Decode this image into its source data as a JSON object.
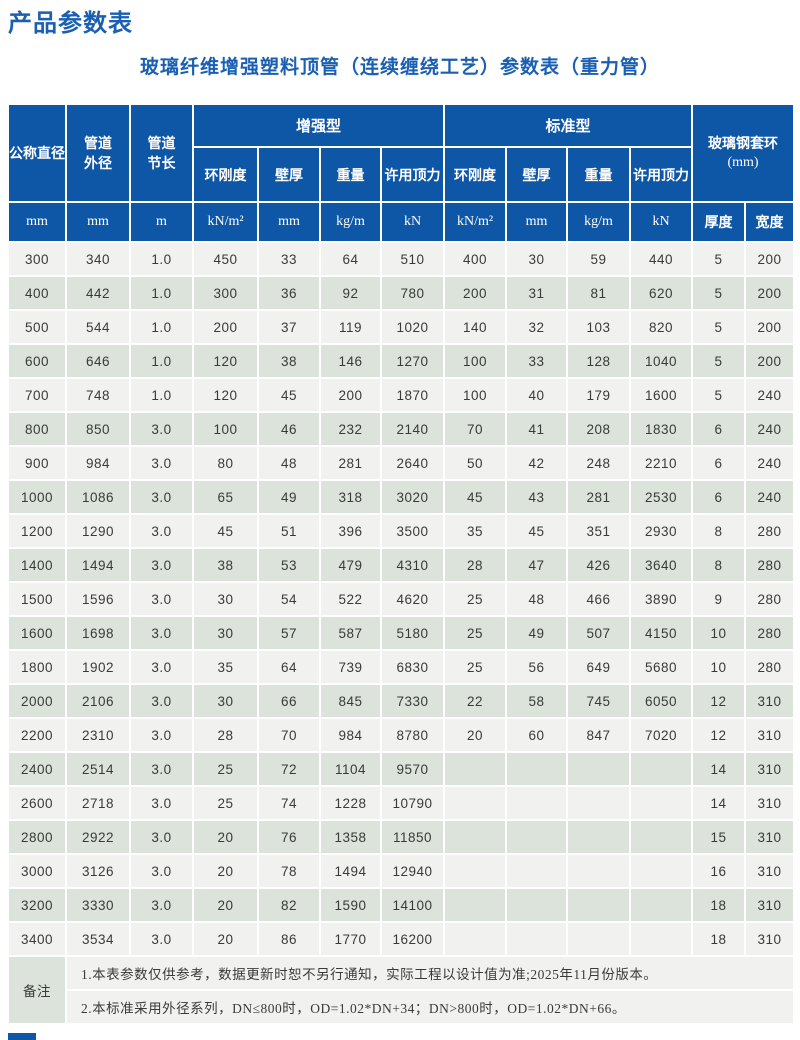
{
  "page_title": "产品参数表",
  "table_title": "玻璃纤维增强塑料顶管（连续缠绕工艺）参数表（重力管）",
  "table": {
    "header": {
      "col_nominal_diameter": "公称直径",
      "col_outer_diameter": [
        "管道",
        "外径"
      ],
      "col_section_length": [
        "管道",
        "节长"
      ],
      "group_reinforced": "增强型",
      "group_standard": "标准型",
      "group_frp_collar": [
        "玻璃钢套环",
        "(mm)"
      ],
      "sub_columns": [
        "环刚度",
        "壁厚",
        "重量",
        "许用顶力"
      ],
      "units": [
        "mm",
        "mm",
        "m",
        "kN/m²",
        "mm",
        "kg/m",
        "kN",
        "kN/m²",
        "mm",
        "kg/m",
        "kN",
        "厚度",
        "宽度"
      ]
    },
    "rows": [
      [
        "300",
        "340",
        "1.0",
        "450",
        "33",
        "64",
        "510",
        "400",
        "30",
        "59",
        "440",
        "5",
        "200"
      ],
      [
        "400",
        "442",
        "1.0",
        "300",
        "36",
        "92",
        "780",
        "200",
        "31",
        "81",
        "620",
        "5",
        "200"
      ],
      [
        "500",
        "544",
        "1.0",
        "200",
        "37",
        "119",
        "1020",
        "140",
        "32",
        "103",
        "820",
        "5",
        "200"
      ],
      [
        "600",
        "646",
        "1.0",
        "120",
        "38",
        "146",
        "1270",
        "100",
        "33",
        "128",
        "1040",
        "5",
        "200"
      ],
      [
        "700",
        "748",
        "1.0",
        "120",
        "45",
        "200",
        "1870",
        "100",
        "40",
        "179",
        "1600",
        "5",
        "240"
      ],
      [
        "800",
        "850",
        "3.0",
        "100",
        "46",
        "232",
        "2140",
        "70",
        "41",
        "208",
        "1830",
        "6",
        "240"
      ],
      [
        "900",
        "984",
        "3.0",
        "80",
        "48",
        "281",
        "2640",
        "50",
        "42",
        "248",
        "2210",
        "6",
        "240"
      ],
      [
        "1000",
        "1086",
        "3.0",
        "65",
        "49",
        "318",
        "3020",
        "45",
        "43",
        "281",
        "2530",
        "6",
        "240"
      ],
      [
        "1200",
        "1290",
        "3.0",
        "45",
        "51",
        "396",
        "3500",
        "35",
        "45",
        "351",
        "2930",
        "8",
        "280"
      ],
      [
        "1400",
        "1494",
        "3.0",
        "38",
        "53",
        "479",
        "4310",
        "28",
        "47",
        "426",
        "3640",
        "8",
        "280"
      ],
      [
        "1500",
        "1596",
        "3.0",
        "30",
        "54",
        "522",
        "4620",
        "25",
        "48",
        "466",
        "3890",
        "9",
        "280"
      ],
      [
        "1600",
        "1698",
        "3.0",
        "30",
        "57",
        "587",
        "5180",
        "25",
        "49",
        "507",
        "4150",
        "10",
        "280"
      ],
      [
        "1800",
        "1902",
        "3.0",
        "35",
        "64",
        "739",
        "6830",
        "25",
        "56",
        "649",
        "5680",
        "10",
        "280"
      ],
      [
        "2000",
        "2106",
        "3.0",
        "30",
        "66",
        "845",
        "7330",
        "22",
        "58",
        "745",
        "6050",
        "12",
        "310"
      ],
      [
        "2200",
        "2310",
        "3.0",
        "28",
        "70",
        "984",
        "8780",
        "20",
        "60",
        "847",
        "7020",
        "12",
        "310"
      ],
      [
        "2400",
        "2514",
        "3.0",
        "25",
        "72",
        "1104",
        "9570",
        "",
        "",
        "",
        "",
        "14",
        "310"
      ],
      [
        "2600",
        "2718",
        "3.0",
        "25",
        "74",
        "1228",
        "10790",
        "",
        "",
        "",
        "",
        "14",
        "310"
      ],
      [
        "2800",
        "2922",
        "3.0",
        "20",
        "76",
        "1358",
        "11850",
        "",
        "",
        "",
        "",
        "15",
        "310"
      ],
      [
        "3000",
        "3126",
        "3.0",
        "20",
        "78",
        "1494",
        "12940",
        "",
        "",
        "",
        "",
        "16",
        "310"
      ],
      [
        "3200",
        "3330",
        "3.0",
        "20",
        "82",
        "1590",
        "14100",
        "",
        "",
        "",
        "",
        "18",
        "310"
      ],
      [
        "3400",
        "3534",
        "3.0",
        "20",
        "86",
        "1770",
        "16200",
        "",
        "",
        "",
        "",
        "18",
        "310"
      ]
    ],
    "remarks": {
      "label": "备注",
      "notes": [
        "1.本表参数仅供参考，数据更新时恕不另行通知，实际工程以设计值为准;2025年11月份版本。",
        "2.本标准采用外径系列，DN≤800时，OD=1.02*DN+34；DN>800时，OD=1.02*DN+66。"
      ]
    }
  },
  "colors": {
    "header_bg": "#0e56a6",
    "title_text": "#1a5fb2",
    "row_light": "#f1f1ef",
    "row_green": "#dbe3da"
  }
}
